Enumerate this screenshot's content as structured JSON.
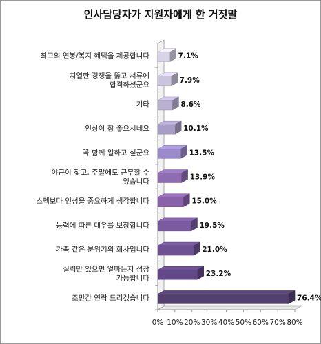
{
  "chart_data": {
    "type": "bar",
    "orientation": "horizontal",
    "title": "인사담당자가 지원자에게 한 거짓말",
    "categories": [
      [
        "최고의 연봉/복지 혜택을 제공합니다"
      ],
      [
        "치열한 경쟁을 뚫고 서류에",
        "합격하셨군요"
      ],
      [
        "기타"
      ],
      [
        "인상이 참 좋으시네요"
      ],
      [
        "꼭 함께 일하고 싶군요"
      ],
      [
        "야근이 잦고, 주말에도 근무할 수",
        "있습니다"
      ],
      [
        "스펙보다 인성을 중요하게 생각합니다"
      ],
      [
        "능력에 따른 대우를 보장합니다"
      ],
      [
        "가족 같은 분위기의 회사입니다"
      ],
      [
        "실력만 있으면 얼마든지 성장",
        "가능합니다"
      ],
      [
        "조만간 연락 드리겠습니다"
      ]
    ],
    "values": [
      7.1,
      7.9,
      8.6,
      10.1,
      13.5,
      13.9,
      15.0,
      19.5,
      21.0,
      23.2,
      76.4
    ],
    "value_labels": [
      "7.1%",
      "7.9%",
      "8.6%",
      "10.1%",
      "13.5%",
      "13.9%",
      "15.0%",
      "19.5%",
      "21.0%",
      "23.2%",
      "76.4%"
    ],
    "xlim": [
      0,
      80
    ],
    "xticks": [
      "0%",
      "10%",
      "20%",
      "30%",
      "40%",
      "50%",
      "60%",
      "70%",
      "80%"
    ],
    "bar_colors": [
      "#d8d3e6",
      "#cbc4de",
      "#b9b0d2",
      "#a89dc6",
      "#9a8aca",
      "#8e6cb0",
      "#8a62aa",
      "#7a5aa0",
      "#6e5192",
      "#624888",
      "#53406e"
    ],
    "grid": false,
    "legend": "none"
  }
}
